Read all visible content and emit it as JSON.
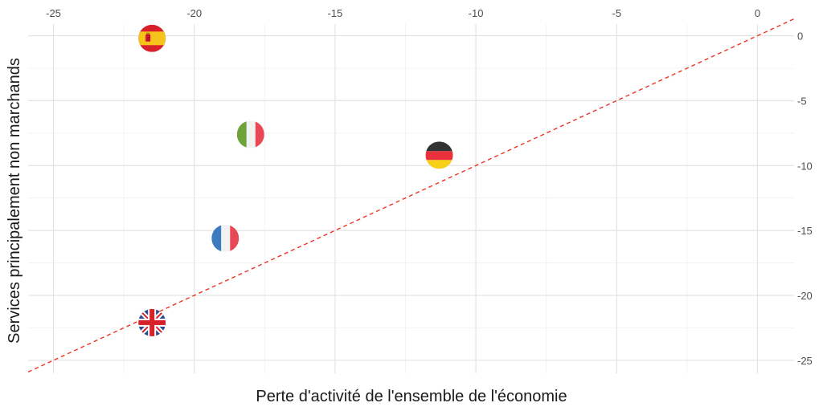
{
  "chart_data": {
    "type": "scatter",
    "title": "",
    "xlabel": "Perte d'activité de l'ensemble de l'économie",
    "ylabel": "Services principalement non marchands",
    "xlim": [
      -25.9,
      1.3
    ],
    "ylim": [
      -26.0,
      0.9
    ],
    "x_ticks": [
      -25,
      -20,
      -15,
      -10,
      -5,
      0
    ],
    "y_ticks": [
      0,
      -5,
      -10,
      -15,
      -20,
      -25
    ],
    "x_tick_labels": [
      "-25",
      "-20",
      "-15",
      "-10",
      "-5",
      "0"
    ],
    "y_tick_labels": [
      "0",
      "-5",
      "-10",
      "-15",
      "-20",
      "-25"
    ],
    "x_axis_position": "top",
    "y_axis_position": "right",
    "grid": true,
    "reference_line": {
      "slope": 1,
      "intercept": 0,
      "style": "dashed",
      "color": "#ee3322"
    },
    "points": [
      {
        "x": -21.5,
        "y": -0.2,
        "marker": "spain-flag-icon"
      },
      {
        "x": -18.0,
        "y": -7.6,
        "marker": "italy-flag-icon"
      },
      {
        "x": -11.3,
        "y": -9.2,
        "marker": "germany-flag-icon"
      },
      {
        "x": -18.9,
        "y": -15.6,
        "marker": "france-flag-icon"
      },
      {
        "x": -21.5,
        "y": -22.1,
        "marker": "uk-flag-icon"
      }
    ]
  }
}
